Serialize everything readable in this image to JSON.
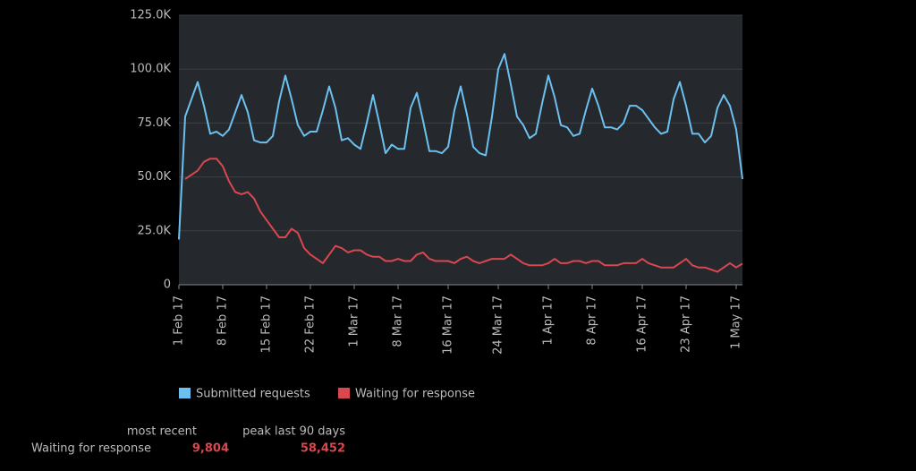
{
  "chart_data": {
    "type": "line",
    "categories": [
      "1 Feb 17",
      null,
      null,
      null,
      null,
      null,
      null,
      "8 Feb 17",
      null,
      null,
      null,
      null,
      null,
      null,
      "15 Feb 17",
      null,
      null,
      null,
      null,
      null,
      null,
      "22 Feb 17",
      null,
      null,
      null,
      null,
      null,
      null,
      "1 Mar 17",
      null,
      null,
      null,
      null,
      null,
      null,
      "8 Mar 17",
      null,
      null,
      null,
      null,
      null,
      null,
      null,
      "16 Mar 17",
      null,
      null,
      null,
      null,
      null,
      null,
      null,
      "24 Mar 17",
      null,
      null,
      null,
      null,
      null,
      null,
      null,
      "1 Apr 17",
      null,
      null,
      null,
      null,
      null,
      null,
      "8 Apr 17",
      null,
      null,
      null,
      null,
      null,
      null,
      null,
      "16 Apr 17",
      null,
      null,
      null,
      null,
      null,
      null,
      "23 Apr 17",
      null,
      null,
      null,
      null,
      null,
      null,
      null,
      "1 May 17",
      null
    ],
    "series": [
      {
        "name": "Submitted requests",
        "color": "#6cc0f0",
        "values": [
          21000,
          78000,
          86000,
          94000,
          83000,
          70000,
          71000,
          69000,
          72000,
          80000,
          88000,
          80000,
          67000,
          66000,
          66000,
          69000,
          85000,
          97000,
          86000,
          74000,
          69000,
          71000,
          71000,
          81000,
          92000,
          82000,
          67000,
          68000,
          65000,
          63000,
          75000,
          88000,
          75000,
          61000,
          65000,
          63000,
          63000,
          82000,
          89000,
          76000,
          62000,
          62000,
          61000,
          64000,
          81000,
          92000,
          79000,
          64000,
          61000,
          60000,
          78000,
          100000,
          107000,
          93000,
          78000,
          74000,
          68000,
          70000,
          84000,
          97000,
          87000,
          74000,
          73000,
          69000,
          70000,
          81000,
          91000,
          83000,
          73000,
          73000,
          72000,
          75000,
          83000,
          83000,
          81000,
          77000,
          73000,
          70000,
          71000,
          86000,
          94000,
          83000,
          70000,
          70000,
          66000,
          69000,
          82000,
          88000,
          83000,
          72000,
          49000
        ]
      },
      {
        "name": "Waiting for response",
        "color": "#d9474f",
        "values": [
          null,
          49000,
          51000,
          53000,
          57000,
          58452,
          58452,
          55000,
          48000,
          43000,
          42000,
          43000,
          40000,
          34000,
          30000,
          26000,
          22000,
          22000,
          26000,
          24000,
          17000,
          14000,
          12000,
          10000,
          14000,
          18000,
          17000,
          15000,
          16000,
          16000,
          14000,
          13000,
          13000,
          11000,
          11000,
          12000,
          11000,
          11000,
          14000,
          15000,
          12000,
          11000,
          11000,
          11000,
          10000,
          12000,
          13000,
          11000,
          10000,
          11000,
          12000,
          12000,
          12000,
          14000,
          12000,
          10000,
          9000,
          9000,
          9000,
          10000,
          12000,
          10000,
          10000,
          11000,
          11000,
          10000,
          11000,
          11000,
          9000,
          9000,
          9000,
          10000,
          10000,
          10000,
          12000,
          10000,
          9000,
          8000,
          8000,
          8000,
          10000,
          12000,
          9000,
          8000,
          8000,
          7000,
          6000,
          8000,
          10000,
          8000,
          9804
        ]
      }
    ],
    "ylim": [
      0,
      125000
    ],
    "yticks": [
      0,
      {
        "value": 25000,
        "label": "25.0K"
      },
      {
        "value": 50000,
        "label": "50.0K"
      },
      {
        "value": 75000,
        "label": "75.0K"
      },
      {
        "value": 100000,
        "label": "100.0K"
      },
      {
        "value": 125000,
        "label": "125.0K"
      }
    ],
    "grid": true
  },
  "summary": {
    "headers": [
      "most recent",
      "peak last 90 days"
    ],
    "rows": [
      [
        "Waiting for response",
        "9,804",
        "58,452"
      ]
    ]
  }
}
